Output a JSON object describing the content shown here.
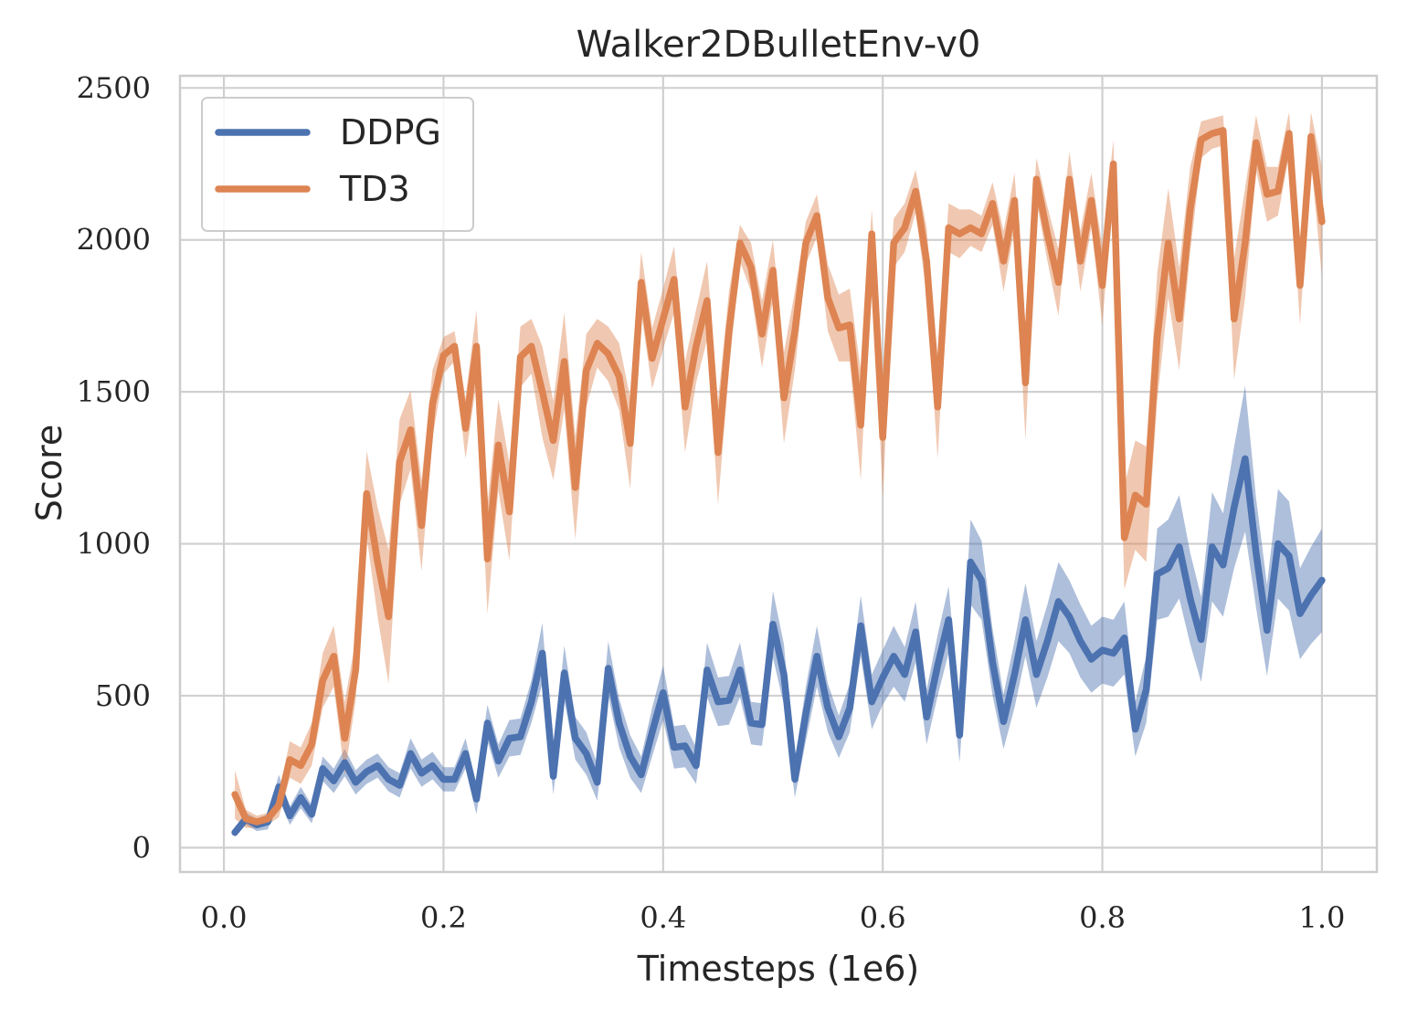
{
  "chart_data": {
    "type": "line",
    "title": "Walker2DBulletEnv-v0",
    "xlabel": "Timesteps (1e6)",
    "ylabel": "Score",
    "xlim": [
      -0.04,
      1.05
    ],
    "ylim": [
      -80,
      2540
    ],
    "xticks": [
      0.0,
      0.2,
      0.4,
      0.6,
      0.8,
      1.0
    ],
    "xtick_labels": [
      "0.0",
      "0.2",
      "0.4",
      "0.6",
      "0.8",
      "1.0"
    ],
    "yticks": [
      0,
      500,
      1000,
      1500,
      2000,
      2500
    ],
    "ytick_labels": [
      "0",
      "500",
      "1000",
      "1500",
      "2000",
      "2500"
    ],
    "grid": true,
    "legend_position": "top-left",
    "x": [
      0.01,
      0.02,
      0.03,
      0.04,
      0.05,
      0.06,
      0.07,
      0.08,
      0.09,
      0.1,
      0.11,
      0.12,
      0.13,
      0.14,
      0.15,
      0.16,
      0.17,
      0.18,
      0.19,
      0.2,
      0.21,
      0.22,
      0.23,
      0.24,
      0.25,
      0.26,
      0.27,
      0.28,
      0.29,
      0.3,
      0.31,
      0.32,
      0.33,
      0.34,
      0.35,
      0.36,
      0.37,
      0.38,
      0.39,
      0.4,
      0.41,
      0.42,
      0.43,
      0.44,
      0.45,
      0.46,
      0.47,
      0.48,
      0.49,
      0.5,
      0.51,
      0.52,
      0.53,
      0.54,
      0.55,
      0.56,
      0.57,
      0.58,
      0.59,
      0.6,
      0.61,
      0.62,
      0.63,
      0.64,
      0.65,
      0.66,
      0.67,
      0.68,
      0.69,
      0.7,
      0.71,
      0.72,
      0.73,
      0.74,
      0.75,
      0.76,
      0.77,
      0.78,
      0.79,
      0.8,
      0.81,
      0.82,
      0.83,
      0.84,
      0.85,
      0.86,
      0.87,
      0.88,
      0.89,
      0.9,
      0.91,
      0.92,
      0.93,
      0.94,
      0.95,
      0.96,
      0.97,
      0.98,
      0.99,
      1.0
    ],
    "series": [
      {
        "name": "DDPG",
        "color": "#4c72b0",
        "values": [
          50,
          95,
          75,
          85,
          200,
          105,
          165,
          110,
          260,
          220,
          280,
          215,
          250,
          270,
          225,
          205,
          310,
          245,
          270,
          225,
          225,
          310,
          160,
          410,
          285,
          360,
          365,
          480,
          640,
          235,
          575,
          360,
          310,
          215,
          590,
          410,
          300,
          240,
          380,
          510,
          330,
          335,
          270,
          585,
          480,
          485,
          585,
          410,
          405,
          735,
          570,
          225,
          440,
          630,
          460,
          365,
          460,
          730,
          480,
          560,
          630,
          570,
          710,
          430,
          600,
          750,
          370,
          940,
          880,
          610,
          415,
          570,
          750,
          570,
          680,
          810,
          760,
          680,
          620,
          650,
          640,
          690,
          390,
          520,
          900,
          920,
          990,
          820,
          685,
          990,
          930,
          1120,
          1280,
          970,
          715,
          1000,
          960,
          770,
          830,
          880
        ],
        "spread": [
          15,
          20,
          20,
          25,
          40,
          30,
          35,
          30,
          40,
          40,
          45,
          40,
          40,
          40,
          40,
          40,
          50,
          45,
          45,
          40,
          40,
          50,
          50,
          60,
          55,
          60,
          60,
          70,
          100,
          60,
          90,
          70,
          70,
          60,
          90,
          80,
          70,
          60,
          80,
          90,
          70,
          70,
          60,
          90,
          80,
          80,
          90,
          70,
          70,
          110,
          100,
          60,
          90,
          100,
          80,
          70,
          80,
          100,
          90,
          90,
          100,
          90,
          100,
          90,
          100,
          110,
          90,
          140,
          130,
          110,
          90,
          110,
          120,
          110,
          120,
          130,
          120,
          120,
          110,
          110,
          110,
          120,
          90,
          110,
          150,
          160,
          170,
          150,
          140,
          180,
          170,
          200,
          240,
          180,
          150,
          180,
          180,
          150,
          160,
          170
        ]
      },
      {
        "name": "TD3",
        "color": "#dd8452",
        "values": [
          175,
          95,
          85,
          95,
          140,
          290,
          270,
          340,
          550,
          630,
          360,
          585,
          1165,
          940,
          760,
          1270,
          1375,
          1060,
          1460,
          1620,
          1650,
          1380,
          1650,
          950,
          1325,
          1105,
          1615,
          1650,
          1500,
          1340,
          1600,
          1185,
          1570,
          1660,
          1625,
          1550,
          1330,
          1860,
          1610,
          1740,
          1870,
          1450,
          1650,
          1800,
          1300,
          1700,
          1990,
          1910,
          1690,
          1900,
          1480,
          1700,
          1990,
          2080,
          1810,
          1710,
          1720,
          1390,
          2020,
          1350,
          1990,
          2040,
          2160,
          1930,
          1450,
          2040,
          2020,
          2040,
          2020,
          2120,
          1930,
          2130,
          1530,
          2200,
          2020,
          1860,
          2200,
          1930,
          2130,
          1850,
          2250,
          1020,
          1160,
          1130,
          1680,
          1990,
          1740,
          2100,
          2330,
          2350,
          2360,
          1740,
          1990,
          2320,
          2150,
          2160,
          2350,
          1850,
          2340,
          2060
        ],
        "spread": [
          80,
          30,
          20,
          20,
          40,
          60,
          60,
          70,
          90,
          100,
          120,
          100,
          140,
          180,
          220,
          140,
          130,
          150,
          110,
          60,
          50,
          100,
          120,
          180,
          150,
          160,
          100,
          90,
          150,
          130,
          160,
          170,
          120,
          80,
          90,
          110,
          150,
          100,
          100,
          100,
          110,
          150,
          120,
          130,
          170,
          130,
          60,
          80,
          110,
          100,
          150,
          130,
          70,
          70,
          110,
          110,
          120,
          180,
          80,
          200,
          80,
          80,
          70,
          110,
          170,
          80,
          80,
          60,
          60,
          70,
          100,
          90,
          190,
          70,
          90,
          110,
          90,
          100,
          90,
          130,
          80,
          170,
          180,
          190,
          210,
          180,
          170,
          140,
          60,
          50,
          50,
          200,
          180,
          90,
          90,
          80,
          70,
          130,
          80,
          180
        ]
      }
    ]
  }
}
